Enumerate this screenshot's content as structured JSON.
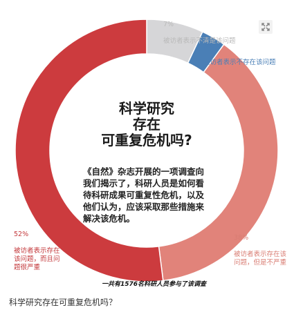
{
  "chart_data": {
    "type": "pie",
    "donut": true,
    "title": "科学研究\n存在\n可重复危机吗?",
    "description": "《自然》杂志开展的一项调查向我们揭示了，科研人员是如何看待科研成果可重复性危机，以及他们认为，应该采取那些措施来解决该危机。",
    "slices": [
      {
        "pct_label": "7%",
        "text": "被访者表示不清楚该问题",
        "value": 7,
        "color": "#d6d6d8"
      },
      {
        "pct_label": "3%",
        "text": "被访者表示不存在该问题",
        "value": 3,
        "color": "#4a7fb6"
      },
      {
        "pct_label": "38%",
        "text": "被访者表示存在该问题，但是不严重",
        "value": 38,
        "color": "#e1837a"
      },
      {
        "pct_label": "52%",
        "text": "被访者表示存在该问题，而且问题很严重",
        "value": 52,
        "color": "#cc3b3e"
      }
    ],
    "footnote": "一共有1576名科研人员参与了该调查"
  },
  "caption": "科学研究存在可重复危机吗？",
  "icons": {
    "expand": "expand-icon"
  }
}
